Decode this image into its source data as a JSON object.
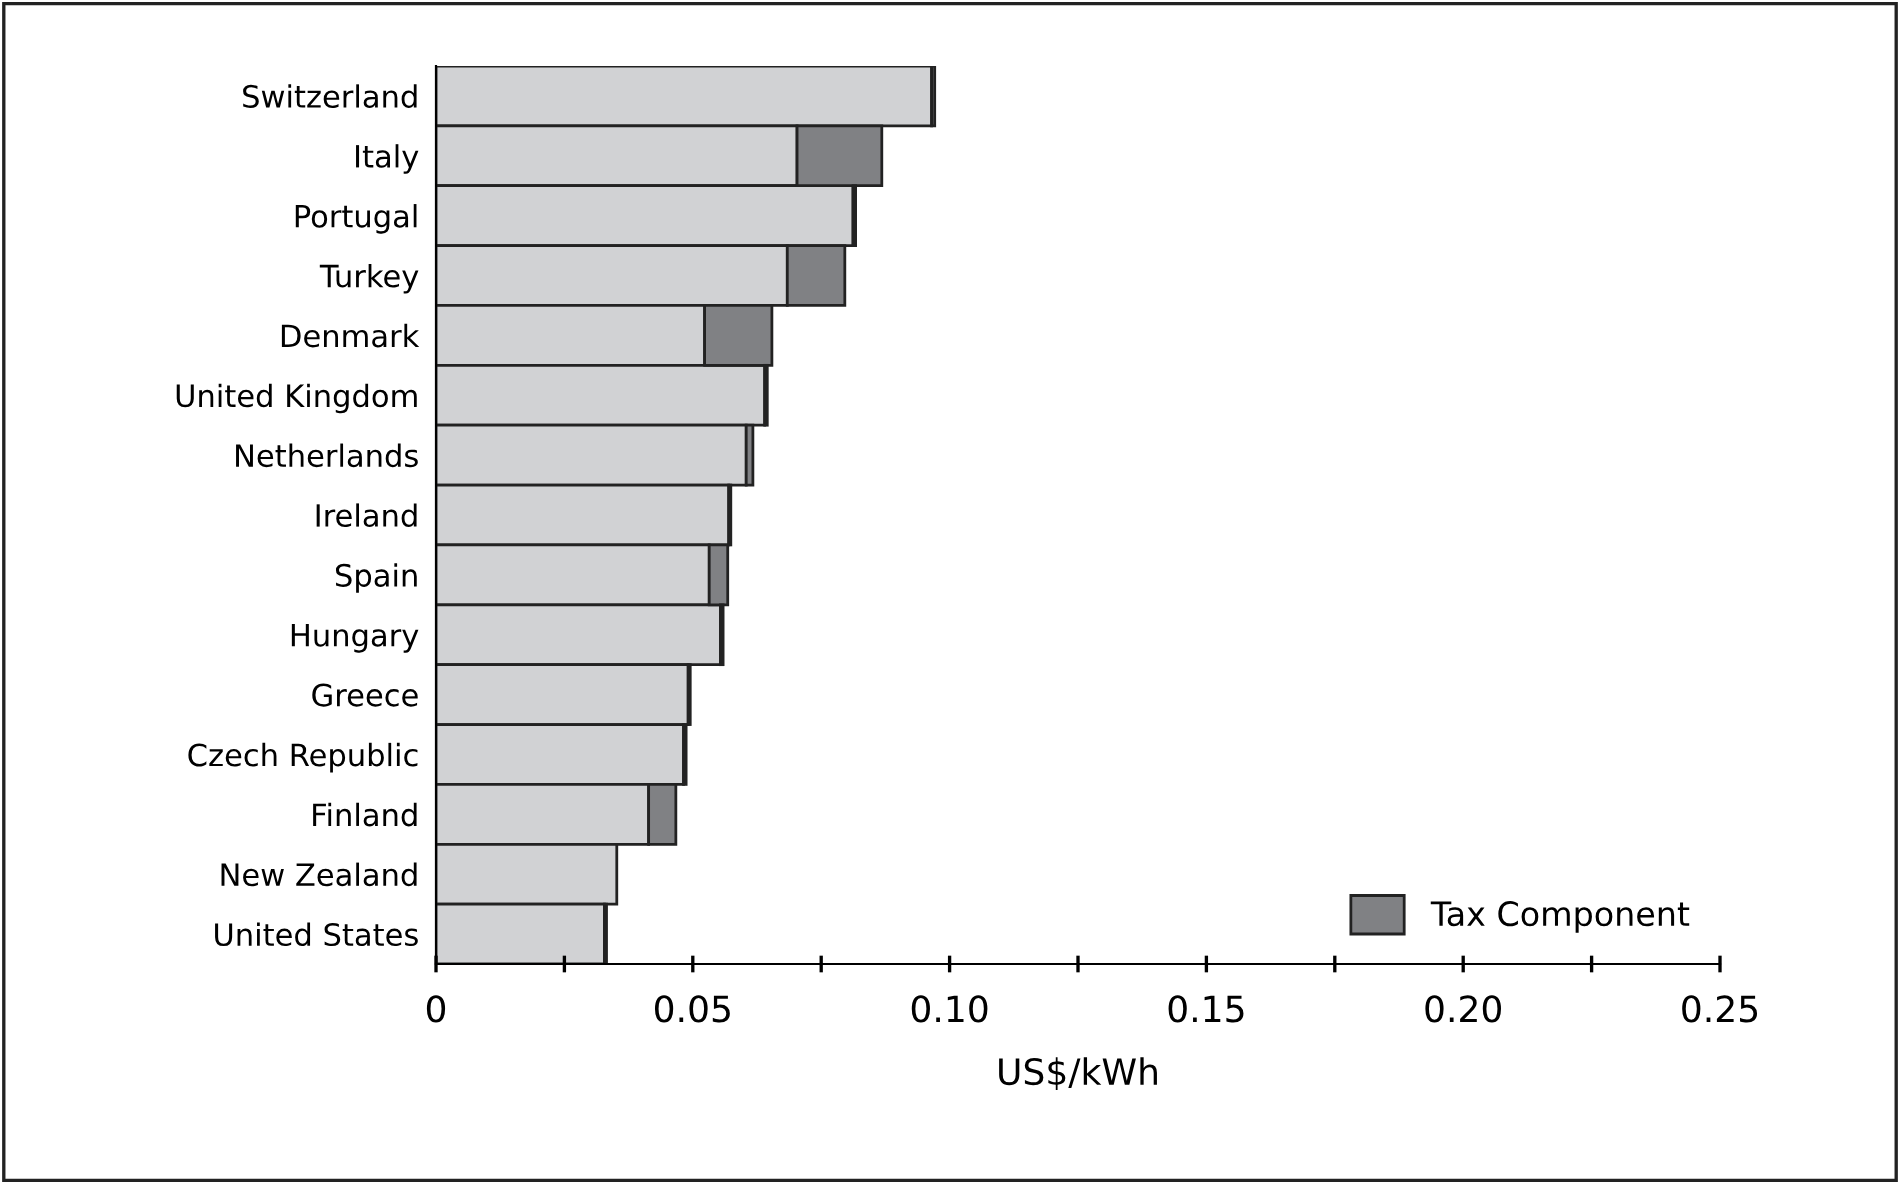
{
  "chart_data": {
    "type": "bar",
    "orientation": "horizontal",
    "stacked": true,
    "xlabel": "US$/kWh",
    "categories": [
      "Switzerland",
      "Italy",
      "Portugal",
      "Turkey",
      "Denmark",
      "United Kingdom",
      "Netherlands",
      "Ireland",
      "Spain",
      "Hungary",
      "Greece",
      "Czech Republic",
      "Finland",
      "New Zealand",
      "United States"
    ],
    "series": [
      {
        "color": "#d1d2d4",
        "values": [
          0.0965,
          0.0703,
          0.0812,
          0.0684,
          0.0523,
          0.064,
          0.0604,
          0.057,
          0.0532,
          0.0554,
          0.0491,
          0.0482,
          0.0414,
          0.0352,
          0.0328
        ]
      },
      {
        "name": "Tax Component",
        "color": "#808184",
        "values": [
          0.0006,
          0.0165,
          0.0005,
          0.0112,
          0.0131,
          0.0005,
          0.0013,
          0.0004,
          0.0036,
          0.0005,
          0.0004,
          0.0005,
          0.0053,
          null,
          0.0004
        ]
      }
    ],
    "xlim": [
      0,
      0.25
    ],
    "xticks": [
      0,
      {
        "value": 0.025,
        "label": null
      },
      0.05,
      {
        "value": 0.075,
        "label": null
      },
      {
        "value": 0.1,
        "label": "0.10"
      },
      {
        "value": 0.125,
        "label": null
      },
      {
        "value": 0.15,
        "label": "0.15"
      },
      {
        "value": 0.175,
        "label": null
      },
      {
        "value": 0.2,
        "label": "0.20"
      },
      {
        "value": 0.225,
        "label": null
      },
      {
        "value": 0.25,
        "label": "0.25"
      }
    ],
    "grid": false,
    "legend": "bottom right"
  }
}
